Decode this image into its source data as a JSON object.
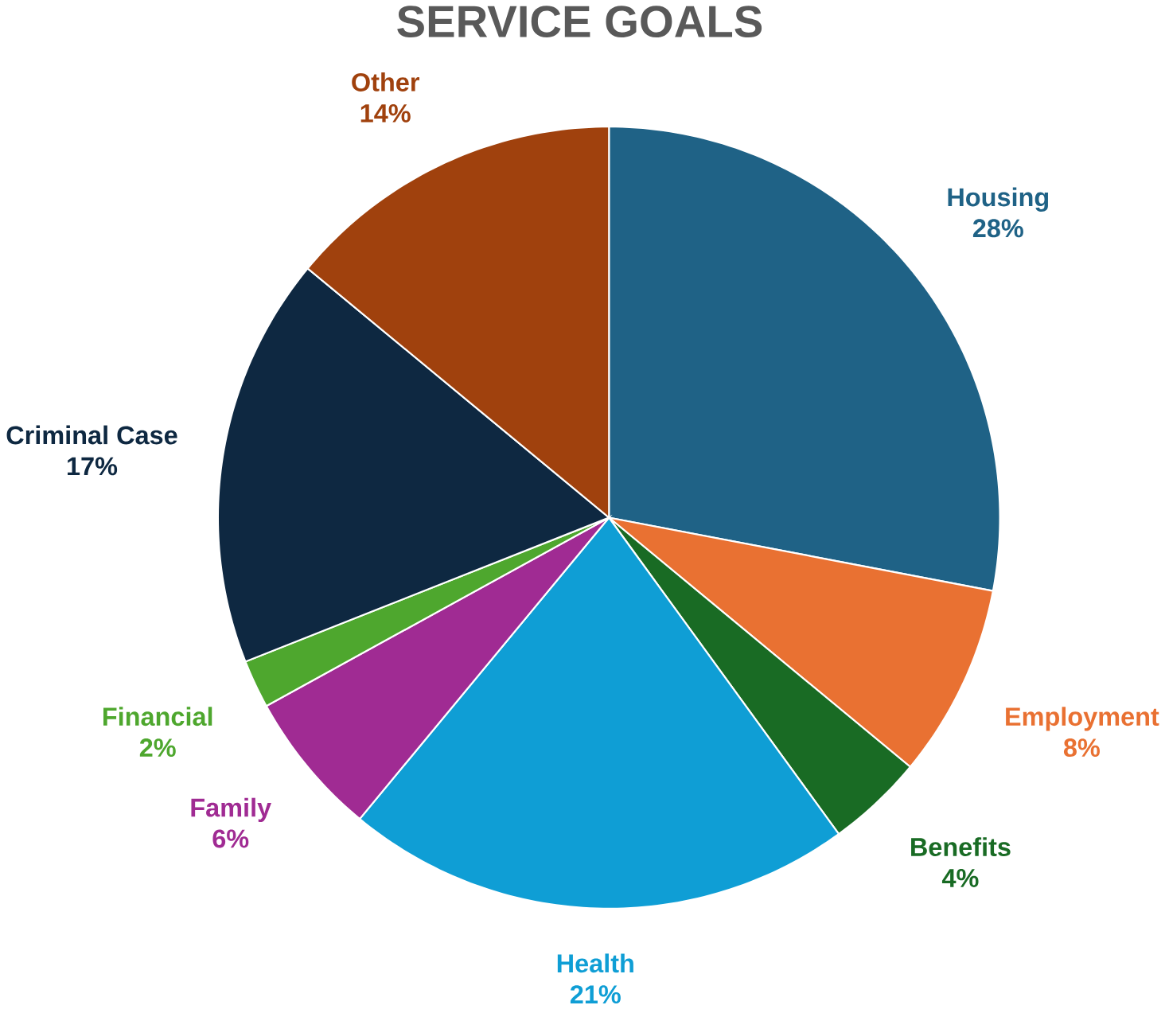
{
  "chart_data": {
    "type": "pie",
    "title": "SERVICE GOALS",
    "categories": [
      "Housing",
      "Employment",
      "Benefits",
      "Health",
      "Family",
      "Financial",
      "Criminal Case",
      "Other"
    ],
    "values": [
      28,
      8,
      4,
      21,
      6,
      2,
      17,
      14
    ],
    "value_labels": [
      "28%",
      "8%",
      "4%",
      "21%",
      "6%",
      "2%",
      "17%",
      "14%"
    ],
    "colors": [
      "#1f6286",
      "#e97132",
      "#196b24",
      "#0f9ed5",
      "#a02b93",
      "#4ea72e",
      "#0e2841",
      "#a0410d"
    ]
  }
}
